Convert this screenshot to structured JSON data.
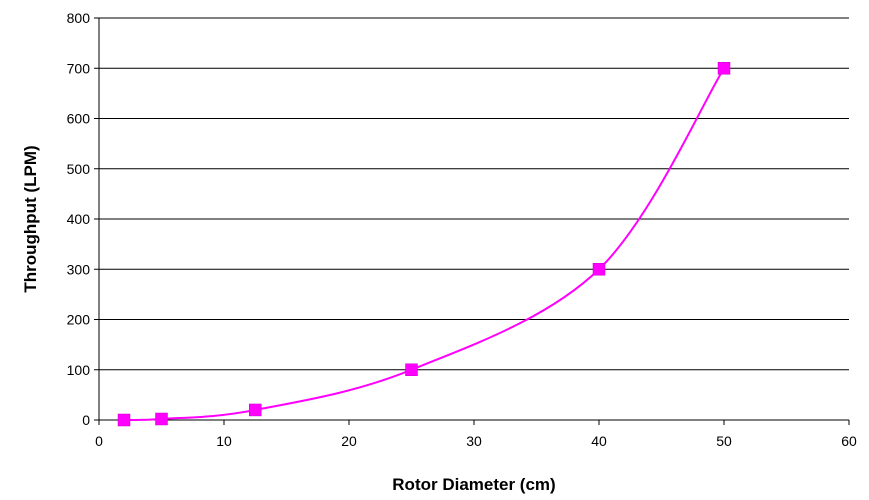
{
  "chart_data": {
    "type": "line",
    "title": "",
    "xlabel": "Rotor Diameter (cm)",
    "ylabel": "Throughput (LPM)",
    "xlim": [
      0,
      60
    ],
    "ylim": [
      0,
      800
    ],
    "x_ticks": [
      0,
      10,
      20,
      30,
      40,
      50,
      60
    ],
    "y_ticks": [
      0,
      100,
      200,
      300,
      400,
      500,
      600,
      700,
      800
    ],
    "grid": "horizontal",
    "legend": "none",
    "series": [
      {
        "color": "#ff00ff",
        "marker": "square",
        "smooth": true,
        "x": [
          2,
          5,
          12.5,
          25,
          40,
          50
        ],
        "y": [
          0,
          2,
          20,
          100,
          300,
          700
        ]
      }
    ]
  }
}
